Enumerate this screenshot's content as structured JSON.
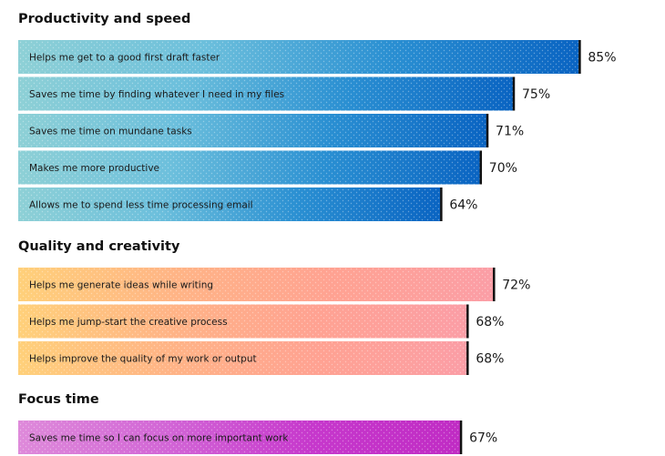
{
  "chart_data": {
    "type": "bar",
    "orientation": "horizontal",
    "value_suffix": "%",
    "xlim": [
      0,
      100
    ],
    "groups": [
      {
        "title": "Productivity and speed",
        "gradient": [
          "#8ed0d6",
          "#6cbfdc",
          "#2a8fd2",
          "#0a64c2"
        ],
        "items": [
          {
            "label": "Helps me get to a good first draft faster",
            "value": 85
          },
          {
            "label": "Saves me time by finding whatever I need in my files",
            "value": 75
          },
          {
            "label": "Saves me time on mundane tasks",
            "value": 71
          },
          {
            "label": "Makes me more productive",
            "value": 70
          },
          {
            "label": "Allows me to spend less time processing email",
            "value": 64
          }
        ]
      },
      {
        "title": "Quality and creativity",
        "gradient": [
          "#ffd07a",
          "#ffb486",
          "#ffa292",
          "#fb9ea6"
        ],
        "items": [
          {
            "label": "Helps me generate ideas while writing",
            "value": 72
          },
          {
            "label": "Helps me jump-start the creative process",
            "value": 68
          },
          {
            "label": "Helps improve the quality of my work or output",
            "value": 68
          }
        ]
      },
      {
        "title": "Focus time",
        "gradient": [
          "#de8ada",
          "#d266d6",
          "#c638cc",
          "#c02cc4"
        ],
        "items": [
          {
            "label": "Saves me time so I can focus on more important work",
            "value": 67
          }
        ]
      }
    ]
  }
}
